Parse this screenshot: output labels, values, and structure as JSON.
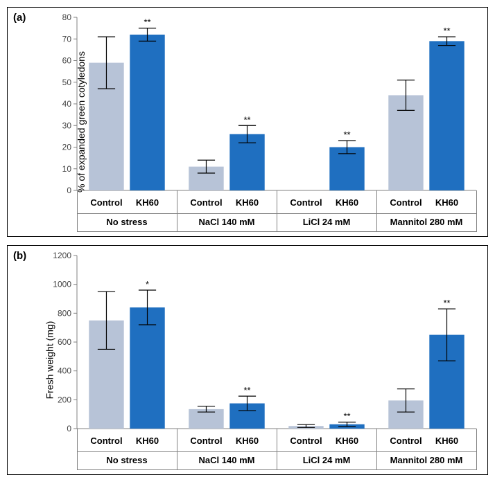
{
  "panel_a": {
    "label": "(a)",
    "type": "bar",
    "ylabel": "% of expanded green cotyledons",
    "ylim": [
      0,
      80
    ],
    "ytick_step": 10,
    "groups": [
      {
        "label": "No stress",
        "control": {
          "value": 59,
          "err_lo": 12,
          "err_hi": 12
        },
        "kh60": {
          "value": 72,
          "err_lo": 3,
          "err_hi": 3,
          "sig": "**"
        }
      },
      {
        "label": "NaCl 140 mM",
        "control": {
          "value": 11,
          "err_lo": 3,
          "err_hi": 3
        },
        "kh60": {
          "value": 26,
          "err_lo": 4,
          "err_hi": 4,
          "sig": "**"
        }
      },
      {
        "label": "LiCl 24 mM",
        "control": {
          "value": 0,
          "err_lo": 0,
          "err_hi": 0
        },
        "kh60": {
          "value": 20,
          "err_lo": 3,
          "err_hi": 3,
          "sig": "**"
        }
      },
      {
        "label": "Mannitol 280 mM",
        "control": {
          "value": 44,
          "err_lo": 7,
          "err_hi": 7
        },
        "kh60": {
          "value": 69,
          "err_lo": 2,
          "err_hi": 2,
          "sig": "**"
        }
      }
    ],
    "bar_labels": [
      "Control",
      "KH60"
    ],
    "colors": {
      "control": "#b7c3d7",
      "kh60": "#1f6fc0",
      "axis": "#808080",
      "text": "#333333",
      "background": "#ffffff"
    },
    "label_fontsize": 14,
    "tick_fontsize": 12,
    "bar_width_rel": 0.35
  },
  "panel_b": {
    "label": "(b)",
    "type": "bar",
    "ylabel": "Fresh weight (mg)",
    "ylim": [
      0,
      1200
    ],
    "ytick_step": 200,
    "groups": [
      {
        "label": "No stress",
        "control": {
          "value": 750,
          "err_lo": 200,
          "err_hi": 200
        },
        "kh60": {
          "value": 840,
          "err_lo": 120,
          "err_hi": 120,
          "sig": "*"
        }
      },
      {
        "label": "NaCl 140 mM",
        "control": {
          "value": 135,
          "err_lo": 20,
          "err_hi": 20
        },
        "kh60": {
          "value": 175,
          "err_lo": 50,
          "err_hi": 50,
          "sig": "**"
        }
      },
      {
        "label": "LiCl 24 mM",
        "control": {
          "value": 18,
          "err_lo": 10,
          "err_hi": 10
        },
        "kh60": {
          "value": 30,
          "err_lo": 15,
          "err_hi": 15,
          "sig": "**"
        }
      },
      {
        "label": "Mannitol 280 mM",
        "control": {
          "value": 195,
          "err_lo": 80,
          "err_hi": 80
        },
        "kh60": {
          "value": 650,
          "err_lo": 180,
          "err_hi": 180,
          "sig": "**"
        }
      }
    ],
    "bar_labels": [
      "Control",
      "KH60"
    ],
    "colors": {
      "control": "#b7c3d7",
      "kh60": "#1f6fc0",
      "axis": "#808080",
      "text": "#333333",
      "background": "#ffffff"
    },
    "label_fontsize": 14,
    "tick_fontsize": 12,
    "bar_width_rel": 0.35
  }
}
